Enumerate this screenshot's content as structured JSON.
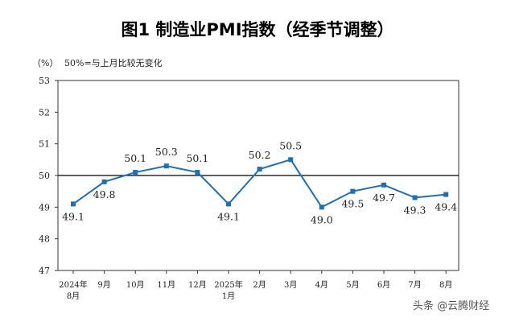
{
  "chart_data": {
    "type": "line",
    "title": "图1  制造业PMI指数（经季节调整）",
    "ylabel": "（%）",
    "note": "50%=与上月比较无变化",
    "categories": [
      [
        "2024年",
        "8月"
      ],
      [
        "9月"
      ],
      [
        "10月"
      ],
      [
        "11月"
      ],
      [
        "12月"
      ],
      [
        "2025年",
        "1月"
      ],
      [
        "2月"
      ],
      [
        "3月"
      ],
      [
        "4月"
      ],
      [
        "5月"
      ],
      [
        "6月"
      ],
      [
        "7月"
      ],
      [
        "8月"
      ]
    ],
    "series": [
      {
        "values": [
          49.1,
          49.8,
          50.1,
          50.3,
          50.1,
          49.1,
          50.2,
          50.5,
          49.0,
          49.5,
          49.7,
          49.3,
          49.4
        ]
      }
    ],
    "data_labels": [
      "49.1",
      "49.8",
      "50.1",
      "50.3",
      "50.1",
      "49.1",
      "50.2",
      "50.5",
      "49.0",
      "49.5",
      "49.7",
      "49.3",
      "49.4"
    ],
    "yticks": [
      47,
      48,
      49,
      50,
      51,
      52,
      53
    ],
    "ylim": [
      47,
      53
    ],
    "reference_line": 50,
    "grid": false,
    "line_color": "#1f6fb2",
    "reference_line_color": "#000000"
  },
  "watermark": "头条 @云腾财经"
}
